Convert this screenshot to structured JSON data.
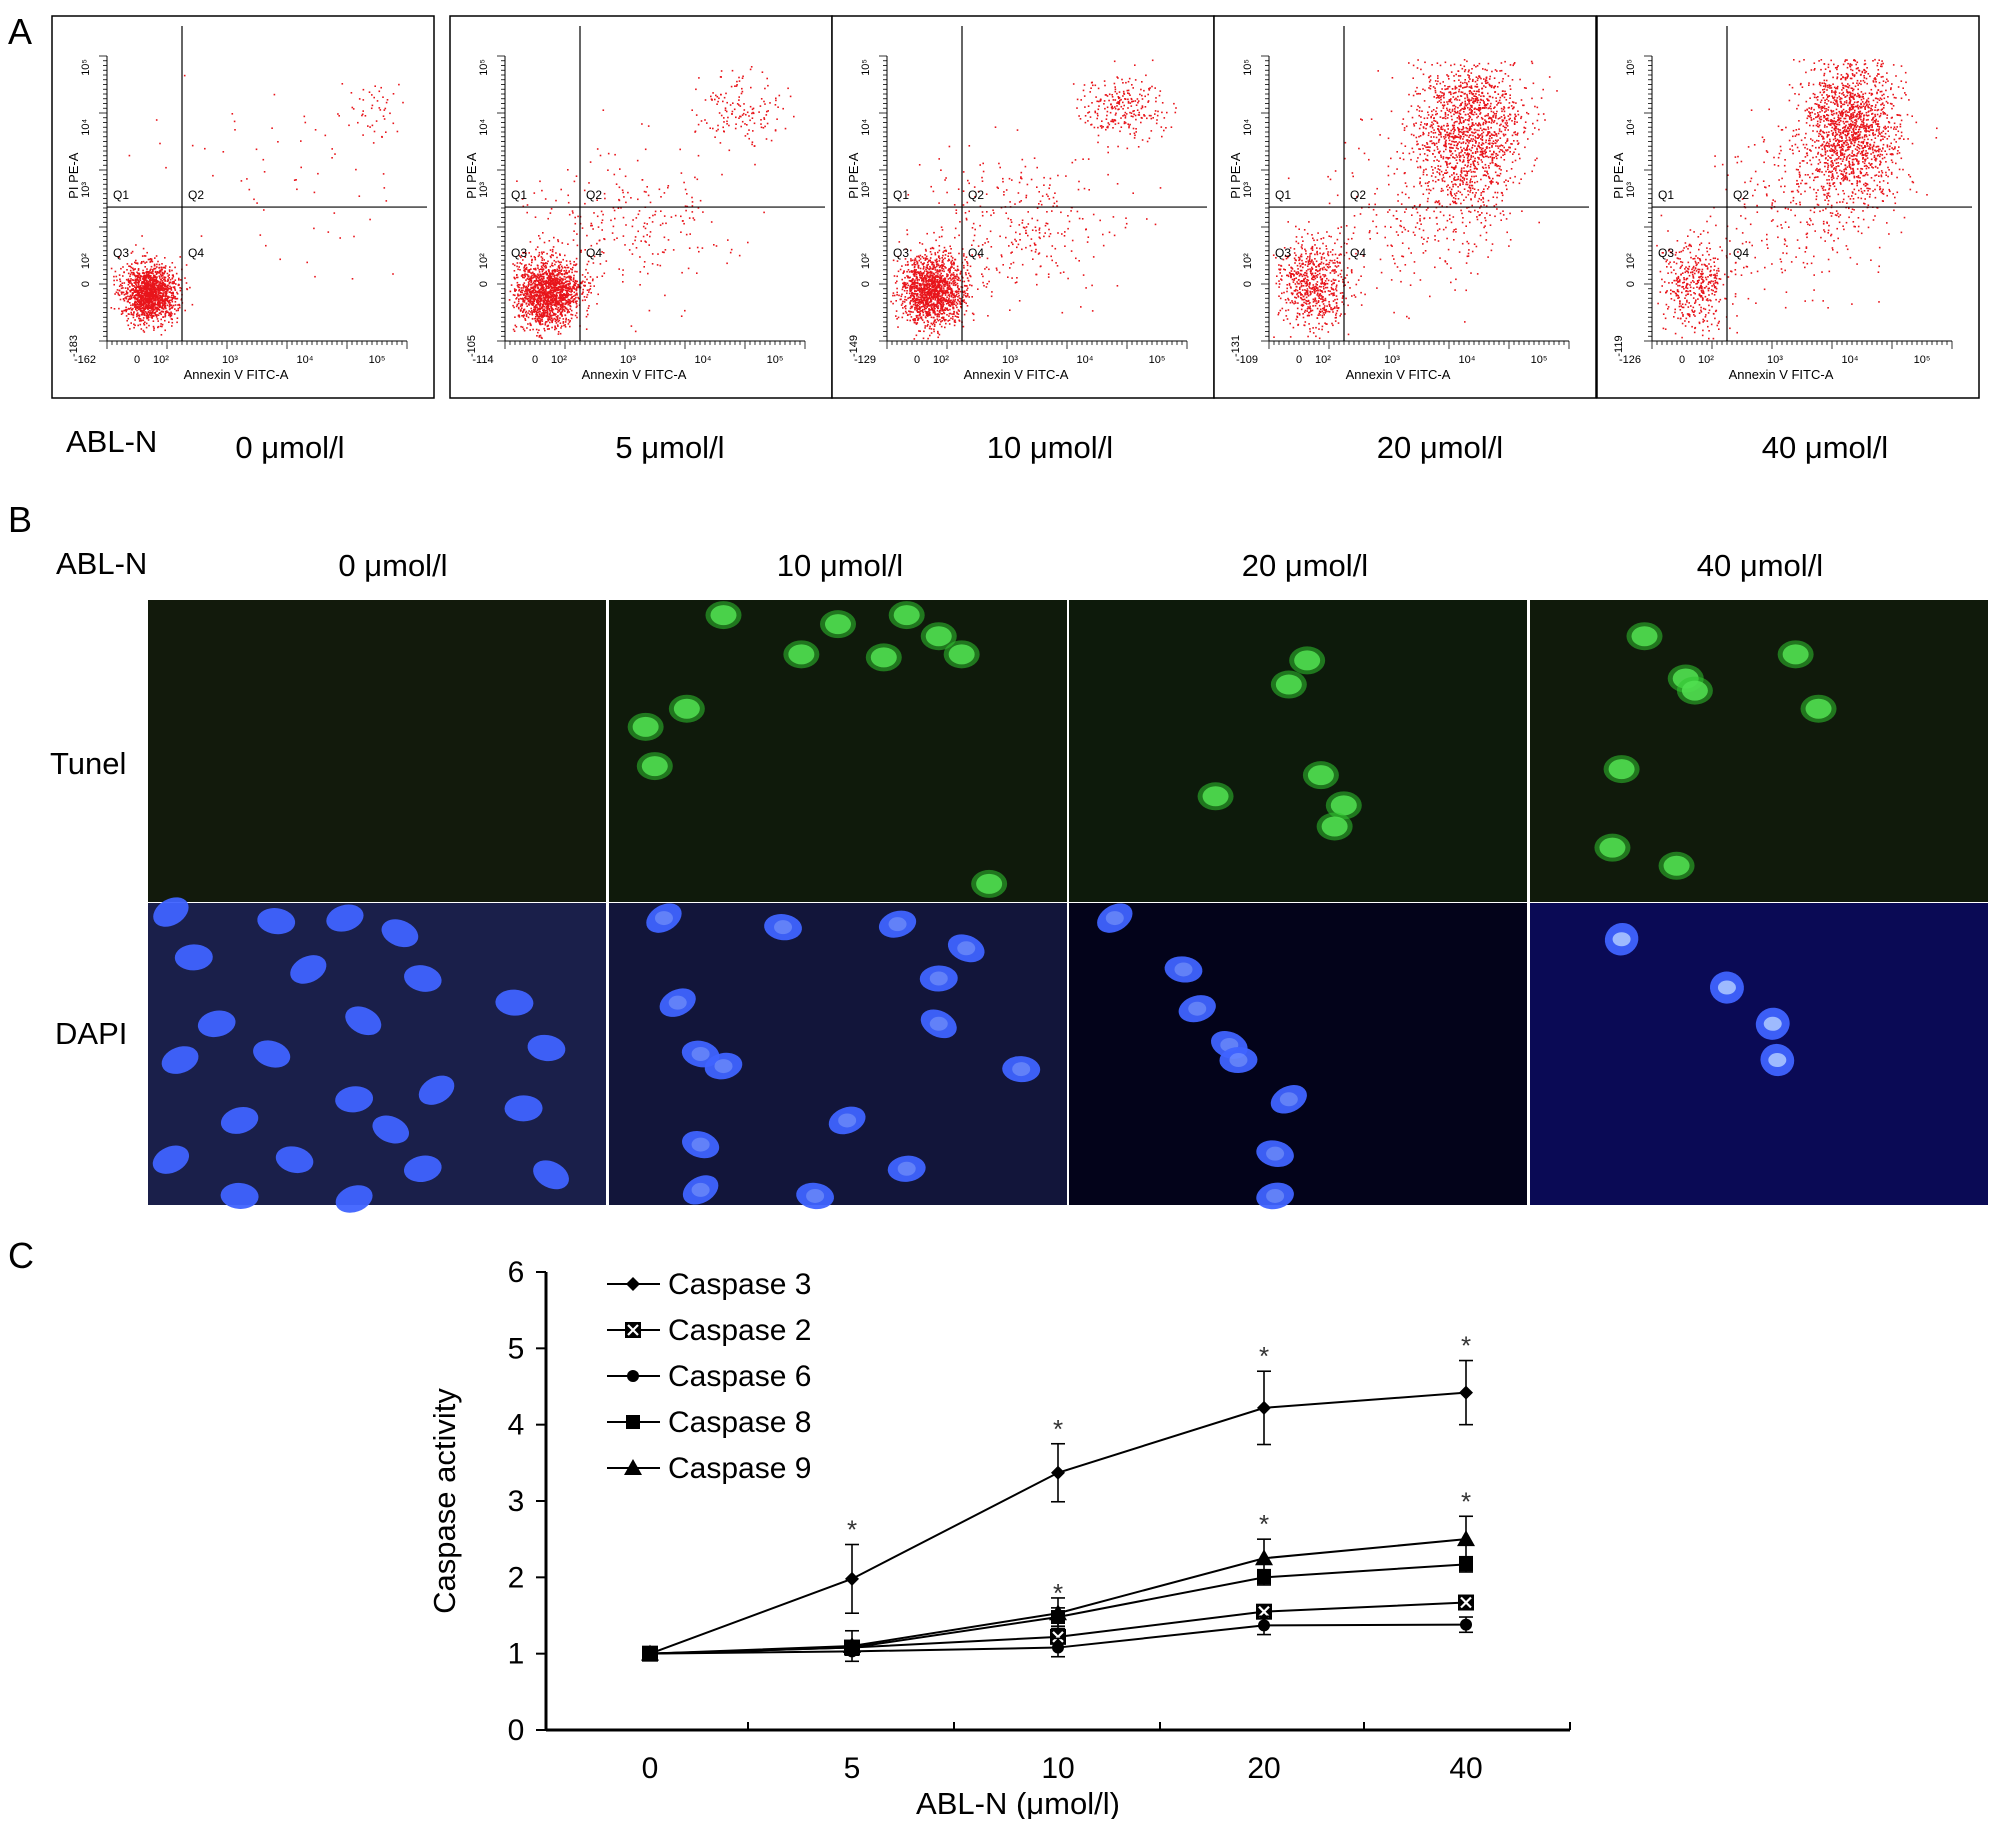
{
  "panels": {
    "a": {
      "letter": "A",
      "treatment_label": "ABL-N",
      "plots": [
        {
          "concentration": "0 μmol/l",
          "y_axis_label": "PI PE-A",
          "x_axis_label": "Annexin V FITC-A",
          "x_min_tick": "-162",
          "y_min_tick": "-183",
          "quadrants": [
            "Q1",
            "Q2",
            "Q3",
            "Q4"
          ]
        },
        {
          "concentration": "5 μmol/l",
          "y_axis_label": "PI PE-A",
          "x_axis_label": "Annexin V FITC-A",
          "x_min_tick": "-114",
          "y_min_tick": "-105",
          "quadrants": [
            "Q1",
            "Q2",
            "Q3",
            "Q4"
          ]
        },
        {
          "concentration": "10 μmol/l",
          "y_axis_label": "PI PE-A",
          "x_axis_label": "Annexin V FITC-A",
          "x_min_tick": "-129",
          "y_min_tick": "-149",
          "quadrants": [
            "Q1",
            "Q2",
            "Q3",
            "Q4"
          ]
        },
        {
          "concentration": "20 μmol/l",
          "y_axis_label": "PI PE-A",
          "x_axis_label": "Annexin V FITC-A",
          "x_min_tick": "-109",
          "y_min_tick": "-131",
          "quadrants": [
            "Q1",
            "Q2",
            "Q3",
            "Q4"
          ]
        },
        {
          "concentration": "40 μmol/l",
          "y_axis_label": "PI PE-A",
          "x_axis_label": "Annexin V FITC-A",
          "x_min_tick": "-126",
          "y_min_tick": "-119",
          "quadrants": [
            "Q1",
            "Q2",
            "Q3",
            "Q4"
          ]
        }
      ],
      "x_ticks": [
        "0",
        "10²",
        "10³",
        "10⁴",
        "10⁵"
      ],
      "y_ticks": [
        "0",
        "10²",
        "10³",
        "10⁴",
        "10⁵"
      ],
      "dot_color": "#e8151b"
    },
    "b": {
      "letter": "B",
      "treatment_label": "ABL-N",
      "columns": [
        "0 μmol/l",
        "10 μmol/l",
        "20 μmol/l",
        "40 μmol/l"
      ],
      "rows": [
        "Tunel",
        "DAPI"
      ],
      "tunel_color": "#2fc52f",
      "dapi_color": "#3f63ff"
    },
    "c": {
      "letter": "C"
    }
  },
  "chart_data": {
    "type": "line",
    "categories": [
      "0",
      "5",
      "10",
      "20",
      "40"
    ],
    "xlabel": "ABL-N (μmol/l)",
    "ylabel": "Caspase activity",
    "ylim": [
      0,
      6
    ],
    "y_ticks": [
      "0",
      "1",
      "2",
      "3",
      "4",
      "5",
      "6"
    ],
    "legend_position": "top-left",
    "significance_marker": "*",
    "series": [
      {
        "name": "Caspase 3",
        "marker": "diamond",
        "values": [
          1.0,
          1.98,
          3.37,
          4.22,
          4.42
        ],
        "errors": [
          0,
          0.45,
          0.38,
          0.48,
          0.42
        ],
        "significant": [
          false,
          true,
          true,
          true,
          true
        ]
      },
      {
        "name": "Caspase 2",
        "marker": "boxed-x",
        "values": [
          1.0,
          1.08,
          1.22,
          1.55,
          1.67
        ],
        "errors": [
          0,
          0.06,
          0.08,
          0.06,
          0.08
        ],
        "significant": [
          false,
          false,
          false,
          false,
          false
        ]
      },
      {
        "name": "Caspase 6",
        "marker": "circle",
        "values": [
          1.0,
          1.03,
          1.08,
          1.37,
          1.38
        ],
        "errors": [
          0,
          0.05,
          0.12,
          0.12,
          0.1
        ],
        "significant": [
          false,
          false,
          false,
          false,
          false
        ]
      },
      {
        "name": "Caspase 8",
        "marker": "square",
        "values": [
          1.0,
          1.08,
          1.48,
          2.0,
          2.17
        ],
        "errors": [
          0,
          0.06,
          0.12,
          0.1,
          0.1
        ],
        "significant": [
          false,
          false,
          true,
          false,
          false
        ]
      },
      {
        "name": "Caspase 9",
        "marker": "triangle",
        "values": [
          1.0,
          1.1,
          1.53,
          2.25,
          2.5
        ],
        "errors": [
          0,
          0.2,
          0.2,
          0.25,
          0.3
        ],
        "significant": [
          false,
          false,
          false,
          true,
          true
        ]
      }
    ]
  }
}
